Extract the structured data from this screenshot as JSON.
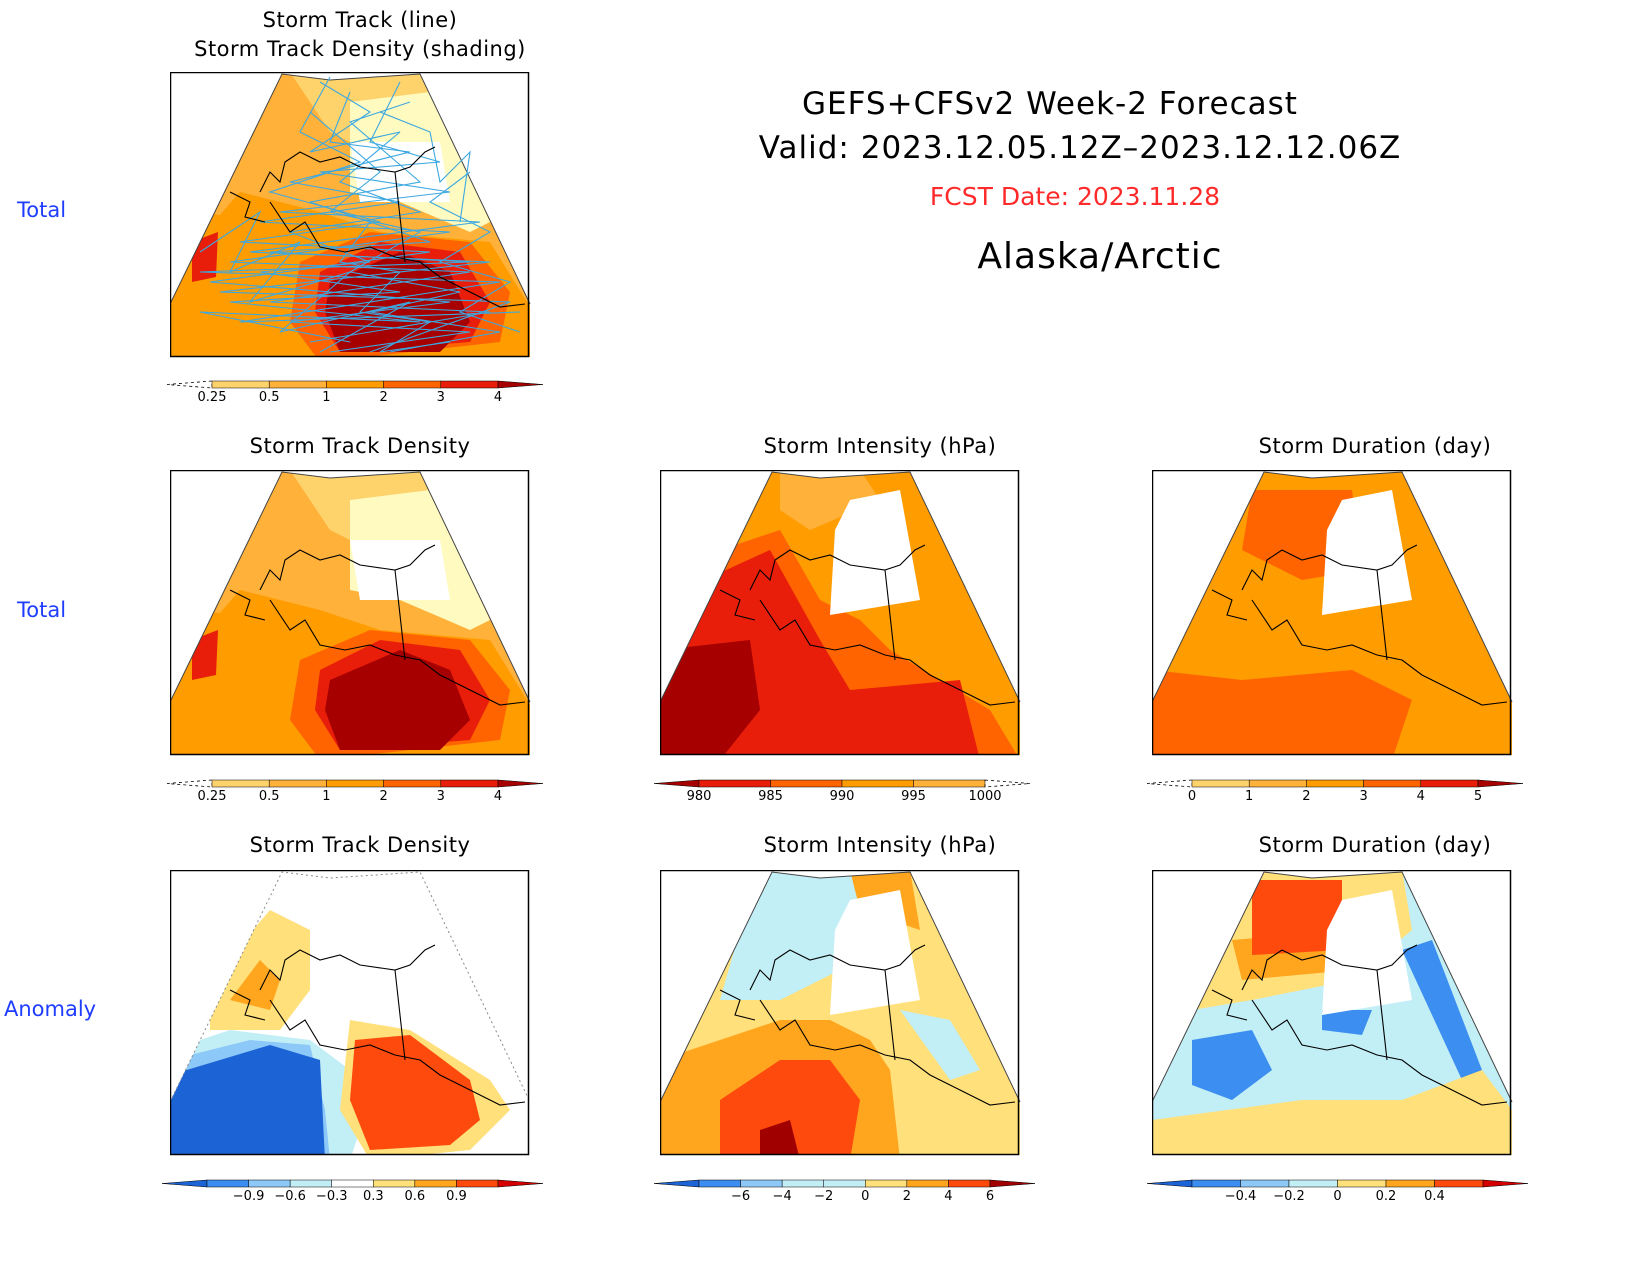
{
  "header": {
    "title": "GEFS+CFSv2 Week-2 Forecast",
    "valid": "Valid: 2023.12.05.12Z–2023.12.12.06Z",
    "fcst_date": "FCST Date: 2023.11.28",
    "region": "Alaska/Arctic",
    "fcst_color": "#ff2a2a"
  },
  "row_labels": [
    "Total",
    "Total",
    "Anomaly"
  ],
  "chart_data": [
    {
      "type": "heatmap",
      "id": "p1",
      "title_lines": [
        "Storm Track (line)",
        "Storm Track Density (shading)"
      ],
      "colorbar": {
        "ticks": [
          "0.25",
          "0.5",
          "1",
          "2",
          "3",
          "4"
        ],
        "colors": [
          "#fffac0",
          "#ffd36b",
          "#ffb13a",
          "#ff9c00",
          "#ff6400",
          "#e81e0a",
          "#a60000"
        ],
        "open_low": "dashed",
        "open_high": "triangle"
      }
    },
    {
      "type": "heatmap",
      "id": "p2",
      "title_lines": [
        "Storm Track Density"
      ],
      "colorbar": {
        "ticks": [
          "0.25",
          "0.5",
          "1",
          "2",
          "3",
          "4"
        ],
        "colors": [
          "#fffac0",
          "#ffd36b",
          "#ffb13a",
          "#ff9c00",
          "#ff6400",
          "#e81e0a",
          "#a60000"
        ],
        "open_low": "dashed",
        "open_high": "triangle"
      }
    },
    {
      "type": "heatmap",
      "id": "p3",
      "title_lines": [
        "Storm Intensity (hPa)"
      ],
      "colorbar": {
        "ticks": [
          "980",
          "985",
          "990",
          "995",
          "1000"
        ],
        "colors": [
          "#a60000",
          "#e81e0a",
          "#ff6400",
          "#ff9c00",
          "#ffb13a",
          "#fffac0"
        ],
        "open_low": "triangle",
        "open_high": "dashed"
      }
    },
    {
      "type": "heatmap",
      "id": "p4",
      "title_lines": [
        "Storm Duration (day)"
      ],
      "colorbar": {
        "ticks": [
          "0",
          "1",
          "2",
          "3",
          "4",
          "5"
        ],
        "colors": [
          "#fffac0",
          "#ffd36b",
          "#ffb13a",
          "#ff9c00",
          "#ff6400",
          "#e81e0a",
          "#a60000"
        ],
        "open_low": "dashed",
        "open_high": "triangle"
      }
    },
    {
      "type": "heatmap",
      "id": "p5",
      "title_lines": [
        "Storm Track Density"
      ],
      "colorbar": {
        "ticks": [
          "−0.9",
          "−0.6",
          "−0.3",
          "0.3",
          "0.6",
          "0.9"
        ],
        "colors": [
          "#1c63d6",
          "#3c8ef0",
          "#8cc8f8",
          "#c2eef6",
          "#ffffff",
          "#ffe07a",
          "#ffa51e",
          "#ff4a0e",
          "#d40000"
        ],
        "open_low": "triangle",
        "open_high": "triangle"
      }
    },
    {
      "type": "heatmap",
      "id": "p6",
      "title_lines": [
        "Storm Intensity (hPa)"
      ],
      "colorbar": {
        "ticks": [
          "−6",
          "−4",
          "−2",
          "0",
          "2",
          "4",
          "6"
        ],
        "colors": [
          "#1c63d6",
          "#3c8ef0",
          "#8cc8f8",
          "#c2eef6",
          "#c2eef6",
          "#ffe07a",
          "#ffa51e",
          "#ff4a0e",
          "#a00000"
        ],
        "open_low": "triangle",
        "open_high": "triangle"
      }
    },
    {
      "type": "heatmap",
      "id": "p7",
      "title_lines": [
        "Storm Duration (day)"
      ],
      "colorbar": {
        "ticks": [
          "−0.4",
          "−0.2",
          "0",
          "0.2",
          "0.4"
        ],
        "colors": [
          "#1c63d6",
          "#3c8ef0",
          "#8cc8f8",
          "#c2eef6",
          "#ffe07a",
          "#ffa51e",
          "#ff4a0e",
          "#d40000"
        ],
        "open_low": "triangle",
        "open_high": "triangle"
      }
    }
  ]
}
